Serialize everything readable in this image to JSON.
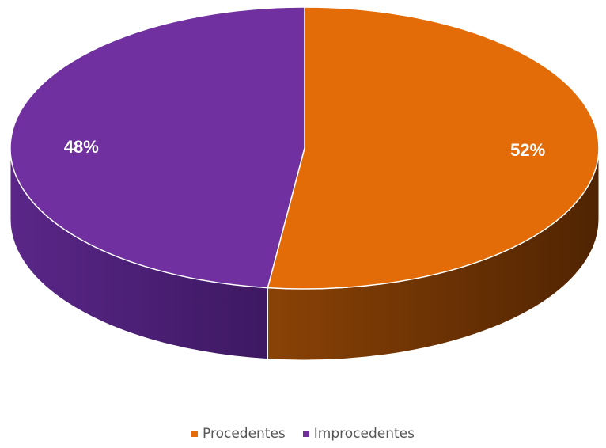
{
  "chart_data": {
    "type": "pie",
    "categories": [
      "Procedentes",
      "Improcedentes"
    ],
    "values": [
      52,
      48
    ],
    "data_labels": [
      "52%",
      "48%"
    ],
    "colors": [
      "#E36C09",
      "#7030A0"
    ],
    "legend_position": "bottom",
    "three_d": true
  }
}
